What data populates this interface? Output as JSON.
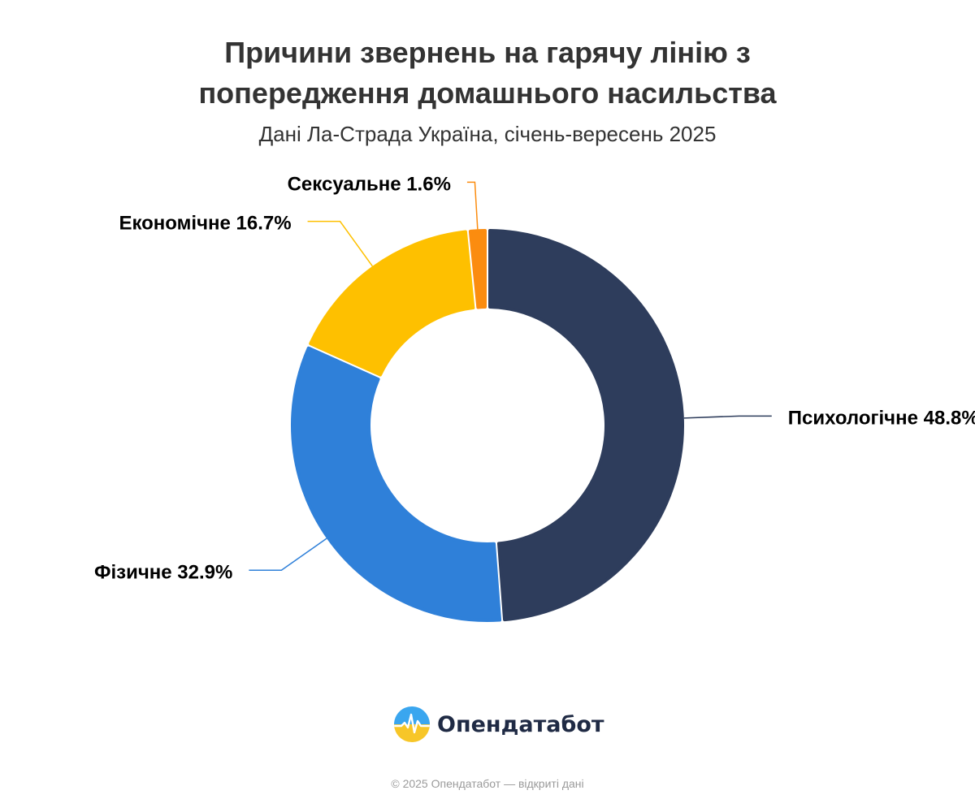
{
  "chart_data": {
    "type": "pie",
    "title": "Причини звернень на гарячу лінію з попередження домашнього насильства",
    "subtitle": "Дані Ла-Страда Україна, січень-вересень 2025",
    "slices": [
      {
        "label": "Психологічне",
        "value": 48.8,
        "display": "48.8%",
        "color": "#2e3d5c"
      },
      {
        "label": "Фізичне",
        "value": 32.9,
        "display": "32.9%",
        "color": "#2f80d9"
      },
      {
        "label": "Економічне",
        "value": 16.7,
        "display": "16.7%",
        "color": "#fec000"
      },
      {
        "label": "Сексуальне",
        "value": 1.6,
        "display": "1.6%",
        "color": "#fb8c0f"
      }
    ],
    "legend": "none",
    "donut": true
  },
  "title_line1": "Причини звернень на гарячу лінію з",
  "title_line2": "попередження домашнього насильства",
  "subtitle": "Дані Ла-Страда Україна, січень-вересень 2025",
  "brand": {
    "name": "Опендатабот",
    "icon": "opendatabot-logo-icon"
  },
  "footer": "© 2025 Опендатабот — відкриті дані"
}
